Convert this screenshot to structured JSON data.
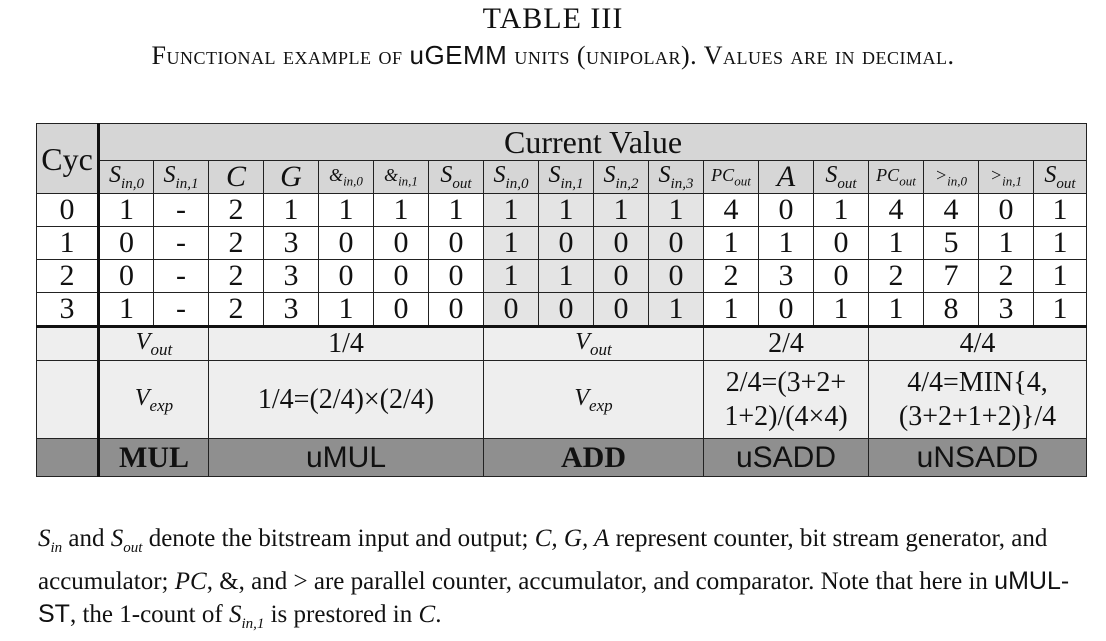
{
  "caption": {
    "title": "TABLE III",
    "subtitle_prefix": "Functional example of ",
    "subtitle_unit": "uGEMM",
    "subtitle_suffix": " units (unipolar). Values are in decimal."
  },
  "table": {
    "cyc_label": "Cyc",
    "current_value_label": "Current Value",
    "cycles": [
      "0",
      "1",
      "2",
      "3"
    ],
    "rows": [
      [
        "1",
        "-",
        "2",
        "1",
        "1",
        "1",
        "1",
        "1",
        "1",
        "1",
        "1",
        "4",
        "0",
        "1",
        "4",
        "4",
        "0",
        "1"
      ],
      [
        "0",
        "-",
        "2",
        "3",
        "0",
        "0",
        "0",
        "1",
        "0",
        "0",
        "0",
        "1",
        "1",
        "0",
        "1",
        "5",
        "1",
        "1"
      ],
      [
        "0",
        "-",
        "2",
        "3",
        "0",
        "0",
        "0",
        "1",
        "1",
        "0",
        "0",
        "2",
        "3",
        "0",
        "2",
        "7",
        "2",
        "1"
      ],
      [
        "1",
        "-",
        "2",
        "3",
        "1",
        "0",
        "0",
        "0",
        "0",
        "0",
        "1",
        "1",
        "0",
        "1",
        "1",
        "8",
        "3",
        "1"
      ]
    ],
    "vout_label": "V",
    "vout_sub": "out",
    "vexp_label": "V",
    "vexp_sub": "exp",
    "mul_vout": "1/4",
    "mul_vexp": "1/4=(2/4)×(2/4)",
    "sadd_vout": "2/4",
    "sadd_vexp_1": "2/4=(3+2+",
    "sadd_vexp_2": "1+2)/(4×4)",
    "nsadd_vout": "4/4",
    "nsadd_vexp_1": "4/4=MIN{4,",
    "nsadd_vexp_2": "(3+2+1+2)}/4",
    "footer": {
      "mul": "MUL",
      "umul": "uMUL",
      "add": "ADD",
      "usadd": "uSADD",
      "unsadd": "uNSADD"
    }
  },
  "note": {
    "s": "S",
    "in": "in",
    "out": "out",
    "and": "and",
    "t1": " denote the bitstream input and output; ",
    "cga": "C, G, A",
    "t2": " represent counter, bit stream generator, and accumulator; ",
    "pc": "PC",
    "t3": ", &, and > are parallel counter, accumulator, and comparator. Note that here in ",
    "umulst": "uMUL-ST",
    "t4": ", the 1-count of ",
    "in1": "in,1",
    "t5": " is prestored in ",
    "c": "C",
    "t6": "."
  }
}
